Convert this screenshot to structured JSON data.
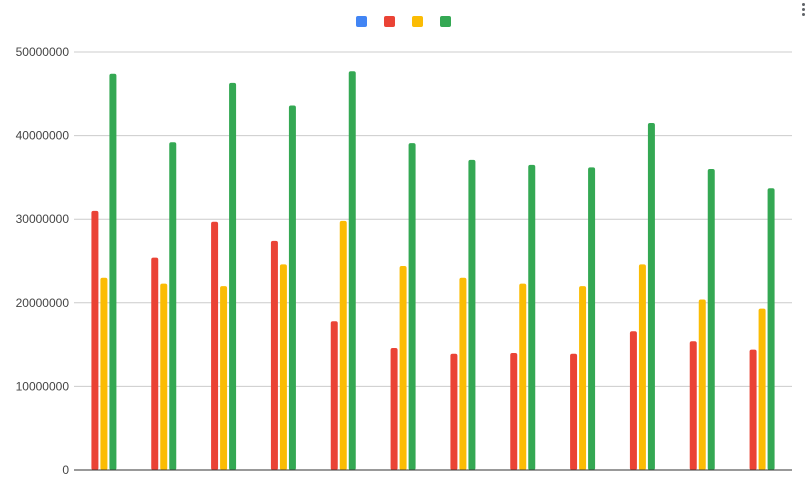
{
  "chart_data": {
    "type": "bar",
    "title": "",
    "xlabel": "",
    "ylabel": "",
    "ylim": [
      0,
      50000000
    ],
    "yticks": [
      "0",
      "10000000",
      "20000000",
      "30000000",
      "40000000",
      "50000000"
    ],
    "ytick_values": [
      0,
      10000000,
      20000000,
      30000000,
      40000000,
      50000000
    ],
    "categories": [
      "",
      "",
      "",
      "",
      "",
      "",
      "",
      "",
      "",
      "",
      "",
      ""
    ],
    "grid": true,
    "legend_position": "top",
    "series": [
      {
        "color": "#4285f4",
        "values": [
          0,
          0,
          0,
          0,
          0,
          0,
          0,
          0,
          0,
          0,
          0,
          0
        ]
      },
      {
        "color": "#ea4335",
        "values": [
          31000000,
          25400000,
          29700000,
          27400000,
          17800000,
          14600000,
          13900000,
          14000000,
          13900000,
          16600000,
          15400000,
          14400000
        ]
      },
      {
        "color": "#fbbc04",
        "values": [
          23000000,
          22300000,
          22000000,
          24600000,
          29800000,
          24400000,
          23000000,
          22300000,
          22000000,
          24600000,
          20400000,
          19300000
        ]
      },
      {
        "color": "#34a853",
        "values": [
          47400000,
          39200000,
          46300000,
          43600000,
          47700000,
          39100000,
          37100000,
          36500000,
          36200000,
          41500000,
          36000000,
          33700000
        ]
      }
    ]
  }
}
